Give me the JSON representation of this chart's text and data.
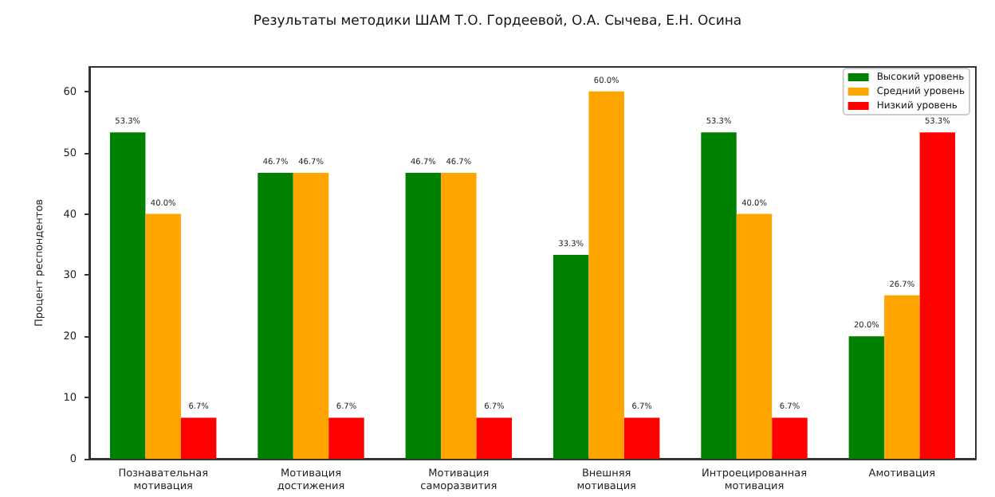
{
  "chart_data": {
    "type": "bar",
    "title": "Результаты методики ШАМ Т.О. Гордеевой, О.А. Сычева, Е.Н. Осина",
    "ylabel": "Процент респондентов",
    "categories": [
      "Познавательная\nмотивация",
      "Мотивация\nдостижения",
      "Мотивация\nсаморазвития",
      "Внешняя\nмотивация",
      "Интроецированная\nмотивация",
      "Амотивация"
    ],
    "series": [
      {
        "name": "Высокий уровень",
        "color": "#008000",
        "values": [
          53.3,
          46.7,
          46.7,
          33.3,
          53.3,
          20.0
        ],
        "value_labels": [
          "53.3%",
          "46.7%",
          "46.7%",
          "33.3%",
          "53.3%",
          "20.0%"
        ]
      },
      {
        "name": "Средний уровень",
        "color": "#ffa500",
        "values": [
          40.0,
          46.7,
          46.7,
          60.0,
          40.0,
          26.7
        ],
        "value_labels": [
          "40.0%",
          "46.7%",
          "46.7%",
          "60.0%",
          "40.0%",
          "26.7%"
        ]
      },
      {
        "name": "Низкий уровень",
        "color": "#ff0000",
        "values": [
          6.7,
          6.7,
          6.7,
          6.7,
          6.7,
          53.3
        ],
        "value_labels": [
          "6.7%",
          "6.7%",
          "6.7%",
          "6.7%",
          "6.7%",
          "53.3%"
        ]
      }
    ],
    "ylim": [
      0,
      64
    ],
    "yticks": [
      0,
      10,
      20,
      30,
      40,
      50,
      60
    ],
    "grid": false,
    "legend": "top right"
  }
}
